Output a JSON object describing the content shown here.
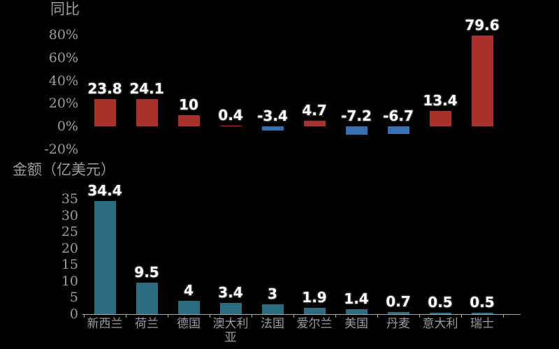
{
  "colors": {
    "background": "#000000",
    "positive_bar": "#A8322B",
    "negative_bar": "#3470B2",
    "amount_bar": "#2B6C7E",
    "axis_text": "#9A9CA4",
    "axis_line": "#A9ABB2",
    "label_text": "#FFFFFF",
    "label_outline": "#303030"
  },
  "chart_data": [
    {
      "type": "bar",
      "title": "同比",
      "categories": [
        "新西兰",
        "荷兰",
        "德国",
        "澳大利亚",
        "法国",
        "爱尔兰",
        "美国",
        "丹麦",
        "意大利",
        "瑞士"
      ],
      "values": [
        23.8,
        24.1,
        10,
        0.4,
        -3.4,
        4.7,
        -7.2,
        -6.7,
        13.4,
        79.6
      ],
      "value_labels": [
        "23.8",
        "24.1",
        "10",
        "0.4",
        "-3.4",
        "4.7",
        "-7.2",
        "-6.7",
        "13.4",
        "79.6"
      ],
      "ytick_labels": [
        "80%",
        "60%",
        "40%",
        "20%",
        "0%",
        "-20%"
      ],
      "ytick_values": [
        80,
        60,
        40,
        20,
        0,
        -20
      ],
      "ylim": [
        -20,
        80
      ],
      "grid": false,
      "legend": "none",
      "x_axis_labels_shown": false,
      "note": "positive values red, negative values blue"
    },
    {
      "type": "bar",
      "title": "金额（亿美元）",
      "categories": [
        "新西兰",
        "荷兰",
        "德国",
        "澳大利亚",
        "法国",
        "爱尔兰",
        "美国",
        "丹麦",
        "意大利",
        "瑞士"
      ],
      "values": [
        34.4,
        9.5,
        4,
        3.4,
        3,
        1.9,
        1.4,
        0.7,
        0.5,
        0.5
      ],
      "value_labels": [
        "34.4",
        "9.5",
        "4",
        "3.4",
        "3",
        "1.9",
        "1.4",
        "0.7",
        "0.5",
        "0.5"
      ],
      "ytick_labels": [
        "35",
        "30",
        "25",
        "20",
        "15",
        "10",
        "5",
        "0"
      ],
      "ytick_values": [
        35,
        30,
        25,
        20,
        15,
        10,
        5,
        0
      ],
      "ylim": [
        0,
        35
      ],
      "grid": false,
      "legend": "none",
      "x_axis_labels_shown": true
    }
  ]
}
